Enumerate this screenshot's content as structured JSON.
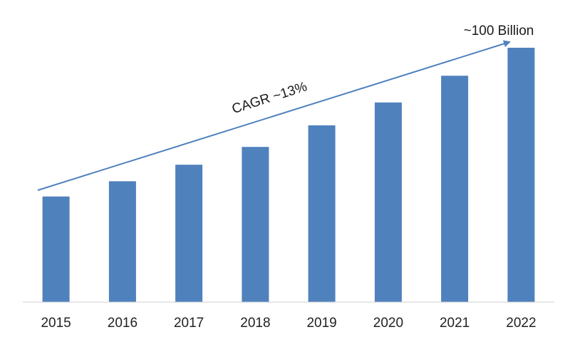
{
  "chart_data": {
    "type": "bar",
    "categories": [
      "2015",
      "2016",
      "2017",
      "2018",
      "2019",
      "2020",
      "2021",
      "2022"
    ],
    "values": [
      41.5,
      47.5,
      54,
      61,
      69.5,
      78.5,
      89,
      100
    ],
    "ylim": [
      0,
      100
    ],
    "grid": false,
    "legend": "none",
    "annotations": {
      "cagr": "CAGR ~13%",
      "end_value": "~100 Billion"
    }
  },
  "colors": {
    "bar": "#4f81bd",
    "trend_arrow": "#4f81bd",
    "axis": "#d0d0d0"
  }
}
